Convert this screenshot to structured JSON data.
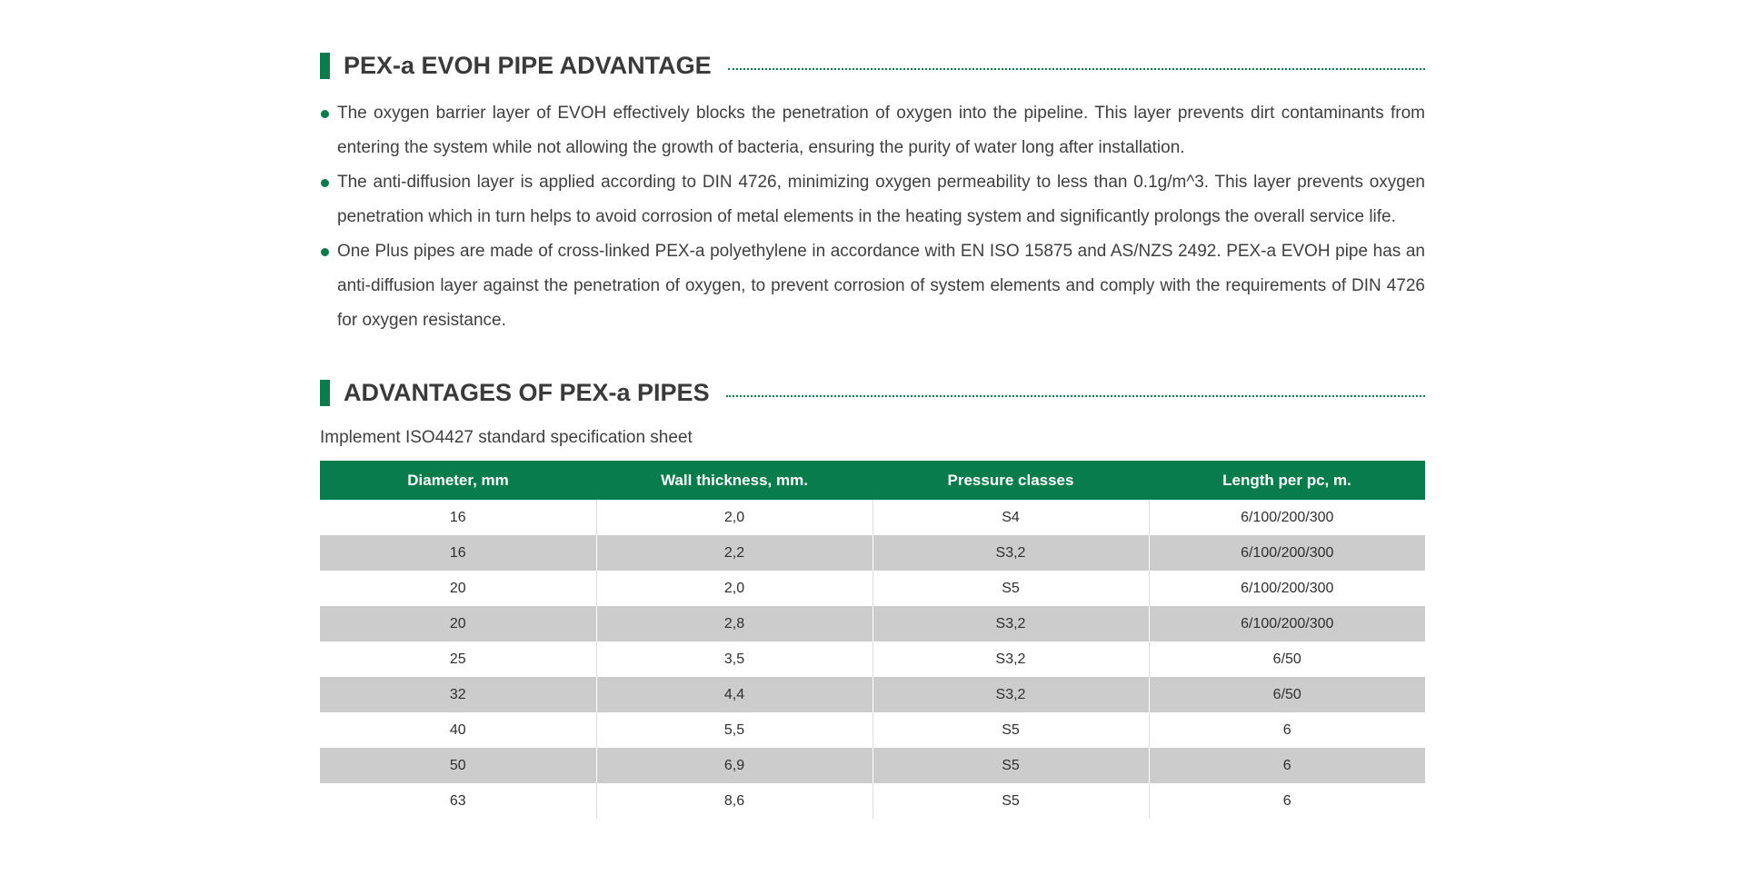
{
  "theme": {
    "accent_green": "#0a7c4c",
    "table_header_bg": "#087c4a",
    "alt_row_bg": "#cccccc",
    "body_text": "#3f3f3f",
    "heading_text": "#3a3a3a"
  },
  "section1": {
    "title": "PEX-a EVOH PIPE ADVANTAGE",
    "bullets": [
      "The oxygen barrier layer of EVOH effectively blocks the penetration of oxygen into the pipeline. This layer prevents dirt contaminants from entering the system while not allowing the growth of bacteria, ensuring the purity of water long after installation.",
      "The anti-diffusion layer is applied according to DIN 4726, minimizing oxygen permeability to less than 0.1g/m^3. This layer prevents oxygen penetration which in turn helps to avoid corrosion of metal elements in the heating system and significantly prolongs the overall service life.",
      "One Plus pipes are made of cross-linked PEX-a polyethylene in accordance with EN ISO 15875 and AS/NZS 2492. PEX-a EVOH pipe has an anti-diffusion layer against the penetration of oxygen, to prevent corrosion of system elements and comply with the requirements of DIN 4726 for oxygen resistance."
    ]
  },
  "section2": {
    "title": "ADVANTAGES OF PEX-a PIPES",
    "subtitle": "Implement ISO4427 standard specification sheet",
    "table": {
      "headers": [
        "Diameter, mm",
        "Wall thickness, mm.",
        "Pressure classes",
        "Length per pc, m."
      ],
      "rows": [
        [
          "16",
          "2,0",
          "S4",
          "6/100/200/300"
        ],
        [
          "16",
          "2,2",
          "S3,2",
          "6/100/200/300"
        ],
        [
          "20",
          "2,0",
          "S5",
          "6/100/200/300"
        ],
        [
          "20",
          "2,8",
          "S3,2",
          "6/100/200/300"
        ],
        [
          "25",
          "3,5",
          "S3,2",
          "6/50"
        ],
        [
          "32",
          "4,4",
          "S3,2",
          "6/50"
        ],
        [
          "40",
          "5,5",
          "S5",
          "6"
        ],
        [
          "50",
          "6,9",
          "S5",
          "6"
        ],
        [
          "63",
          "8,6",
          "S5",
          "6"
        ]
      ]
    }
  }
}
